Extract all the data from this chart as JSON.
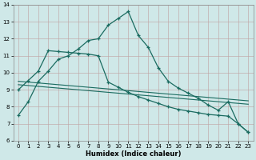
{
  "xlabel": "Humidex (Indice chaleur)",
  "ylabel": "",
  "xlim": [
    -0.5,
    23.5
  ],
  "ylim": [
    6,
    14
  ],
  "xticks": [
    0,
    1,
    2,
    3,
    4,
    5,
    6,
    7,
    8,
    9,
    10,
    11,
    12,
    13,
    14,
    15,
    16,
    17,
    18,
    19,
    20,
    21,
    22,
    23
  ],
  "yticks": [
    6,
    7,
    8,
    9,
    10,
    11,
    12,
    13,
    14
  ],
  "bg_color": "#cfe8e8",
  "line_color": "#1a6b60",
  "series1_x": [
    0,
    1,
    2,
    3,
    4,
    5,
    6,
    7,
    8,
    9,
    10,
    11,
    12,
    13,
    14,
    15,
    16,
    17,
    18,
    19,
    20,
    21,
    22,
    23
  ],
  "series1_y": [
    7.5,
    8.3,
    9.5,
    10.1,
    10.8,
    11.0,
    11.4,
    11.9,
    12.0,
    12.8,
    13.2,
    13.6,
    12.2,
    11.5,
    10.3,
    9.5,
    9.1,
    8.8,
    8.5,
    8.1,
    7.8,
    8.3,
    7.0,
    6.5
  ],
  "series2_x": [
    0,
    1,
    2,
    3,
    4,
    5,
    6,
    7,
    8,
    9,
    10,
    11,
    12,
    13,
    14,
    15,
    16,
    17,
    18,
    19,
    20,
    21,
    22,
    23
  ],
  "series2_y": [
    9.5,
    9.45,
    9.4,
    9.35,
    9.3,
    9.25,
    9.2,
    9.15,
    9.1,
    9.05,
    9.0,
    8.95,
    8.9,
    8.85,
    8.8,
    8.75,
    8.7,
    8.65,
    8.6,
    8.55,
    8.5,
    8.45,
    8.4,
    8.35
  ],
  "series3_x": [
    0,
    1,
    2,
    3,
    4,
    5,
    6,
    7,
    8,
    9,
    10,
    11,
    12,
    13,
    14,
    15,
    16,
    17,
    18,
    19,
    20,
    21,
    22,
    23
  ],
  "series3_y": [
    9.3,
    9.25,
    9.2,
    9.15,
    9.1,
    9.05,
    9.0,
    8.95,
    8.9,
    8.85,
    8.8,
    8.75,
    8.7,
    8.65,
    8.6,
    8.55,
    8.5,
    8.45,
    8.4,
    8.35,
    8.3,
    8.25,
    8.2,
    8.15
  ],
  "series4_x": [
    0,
    1,
    2,
    3,
    4,
    5,
    6,
    7,
    8,
    9,
    10,
    11,
    12,
    13,
    14,
    15,
    16,
    17,
    18,
    19,
    20,
    21,
    22,
    23
  ],
  "series4_y": [
    9.0,
    9.55,
    10.1,
    11.3,
    11.25,
    11.2,
    11.15,
    11.1,
    11.0,
    9.45,
    9.15,
    8.85,
    8.6,
    8.4,
    8.2,
    8.0,
    7.85,
    7.75,
    7.65,
    7.55,
    7.5,
    7.45,
    7.0,
    6.5
  ]
}
